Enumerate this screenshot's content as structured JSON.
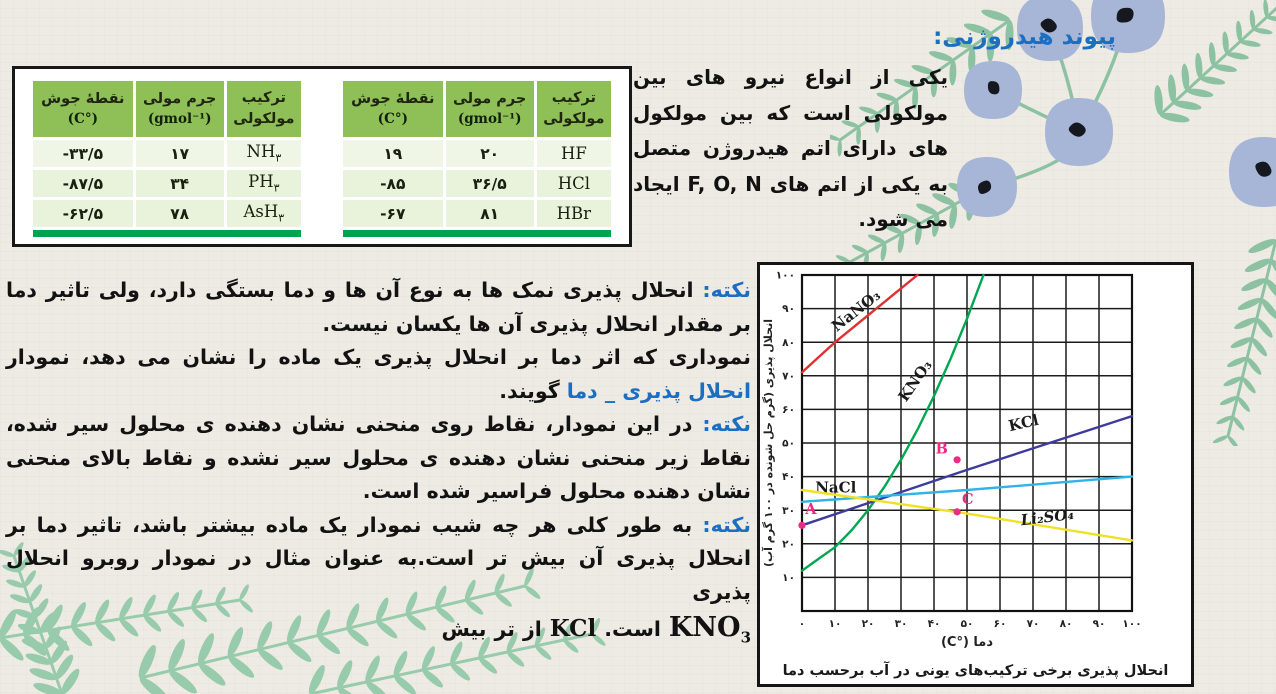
{
  "hydrogen_section": {
    "title": "پیوند هیدروژنی:",
    "body": "یکی از انواع نیرو های بین مولکولی است که بین مولکول های دارای اتم هیدروژن متصل به یکی از اتم های F, O, N ایجاد می شود."
  },
  "tables": {
    "headers": [
      {
        "lines": [
          "ترکیب",
          "مولکولی"
        ]
      },
      {
        "lines": [
          "جرم مولی",
          "(gmol⁻¹)"
        ]
      },
      {
        "lines": [
          "نقطهٔ جوش",
          "(°C)"
        ]
      }
    ],
    "left_rows": [
      [
        "NH|۳",
        "۱۷",
        "-۳۳/۵"
      ],
      [
        "PH|۳",
        "۳۴",
        "-۸۷/۵"
      ],
      [
        "AsH|۳",
        "۷۸",
        "-۶۲/۵"
      ]
    ],
    "right_rows": [
      [
        "HF",
        "۲۰",
        "۱۹"
      ],
      [
        "HCl",
        "۳۶/۵",
        "-۸۵"
      ],
      [
        "HBr",
        "۸۱",
        "-۶۷"
      ]
    ],
    "header_bg": "#8fc057",
    "row_bg": "#e9f2db",
    "underline_color": "#00a44f"
  },
  "notes": {
    "accent_color": "#1b6ec2",
    "lines": [
      {
        "just": true,
        "segs": [
          {
            "t": "نکته:",
            "blue": true
          },
          {
            "t": " انحلال پذیری نمک ها به نوع آن ها و دما بستگی دارد، ولی تاثیر دما"
          }
        ]
      },
      {
        "just": false,
        "segs": [
          {
            "t": "بر مقدار انحلال پذیری آن ها یکسان نیست."
          }
        ]
      },
      {
        "just": true,
        "segs": [
          {
            "t": "نموداری که اثر دما بر انحلال پذیری یک ماده را نشان می دهد، نمودار"
          }
        ]
      },
      {
        "just": false,
        "segs": [
          {
            "t": "انحلال پذیری _ دما",
            "blue": true
          },
          {
            "t": " گویند."
          }
        ]
      },
      {
        "just": true,
        "segs": [
          {
            "t": "نکته:",
            "blue": true
          },
          {
            "t": " در این نمودار، نقاط روی منحنی نشان دهنده ی محلول سیر شده،"
          }
        ]
      },
      {
        "just": true,
        "segs": [
          {
            "t": "نقاط زیر منحنی نشان دهنده ی محلول سیر نشده و نقاط بالای منحنی"
          }
        ]
      },
      {
        "just": false,
        "segs": [
          {
            "t": "نشان دهنده محلول فراسیر شده است."
          }
        ]
      },
      {
        "just": true,
        "segs": [
          {
            "t": "نکته:",
            "blue": true
          },
          {
            "t": " به طور کلی هر چه شیب نمودار یک ماده بیشتر باشد، تاثیر دما بر"
          }
        ]
      },
      {
        "just": true,
        "segs": [
          {
            "t": "انحلال پذیری آن بیش تر است.به عنوان مثال در نمودار روبرو انحلال پذیری"
          }
        ]
      },
      {
        "flex": true,
        "tokens": [
          {
            "t": "بیش"
          },
          {
            "t": "تر"
          },
          {
            "t": "از"
          },
          {
            "t": "KCl",
            "latin": true
          },
          {
            "t": "است."
          },
          {
            "t": "KNO",
            "latin": true,
            "big": true,
            "sub": "3"
          }
        ]
      }
    ]
  },
  "chart_data": {
    "type": "line",
    "caption": "انحلال پذیری برخی ترکیب‌های یونی در آب برحسب دما",
    "xlabel": "دما (°C)",
    "ylabel": "انحلال پذیری (گرم حل شونده در ۱۰۰ گرم آب)",
    "xlim": [
      0,
      100
    ],
    "ylim": [
      0,
      100
    ],
    "grid_step": 10,
    "grid": true,
    "x_ticks": [
      "۰",
      "۱۰",
      "۲۰",
      "۳۰",
      "۴۰",
      "۵۰",
      "۶۰",
      "۷۰",
      "۸۰",
      "۹۰",
      "۱۰۰"
    ],
    "y_ticks": [
      "۰",
      "۱۰",
      "۲۰",
      "۳۰",
      "۴۰",
      "۵۰",
      "۶۰",
      "۷۰",
      "۸۰",
      "۹۰",
      "۱۰۰"
    ],
    "series": [
      {
        "name": "NaNO₃",
        "color": "#e03030",
        "points": [
          [
            0,
            71
          ],
          [
            5,
            75.5
          ],
          [
            10,
            80
          ],
          [
            15,
            84
          ],
          [
            20,
            88
          ],
          [
            25,
            92
          ],
          [
            30,
            96
          ],
          [
            35,
            100
          ]
        ],
        "label_pos": [
          10.5,
          83
        ],
        "label_angle": -38
      },
      {
        "name": "KNO₃",
        "color": "#00a651",
        "points": [
          [
            0,
            12
          ],
          [
            5,
            15.5
          ],
          [
            10,
            19
          ],
          [
            15,
            24
          ],
          [
            20,
            30
          ],
          [
            25,
            37
          ],
          [
            30,
            45
          ],
          [
            35,
            54
          ],
          [
            40,
            64
          ],
          [
            45,
            75
          ],
          [
            50,
            87
          ],
          [
            55,
            100
          ]
        ],
        "label_pos": [
          31.5,
          62
        ],
        "label_angle": -55
      },
      {
        "name": "KCl",
        "color": "#3c3c9c",
        "points": [
          [
            0,
            25.5
          ],
          [
            50,
            42
          ],
          [
            100,
            58
          ]
        ],
        "label_pos": [
          63,
          53.5
        ],
        "label_angle": -13
      },
      {
        "name": "NaCl",
        "color": "#2fb3e8",
        "points": [
          [
            0,
            32.5
          ],
          [
            50,
            36
          ],
          [
            100,
            40
          ]
        ],
        "label_pos": [
          4,
          35.2
        ],
        "label_angle": 0
      },
      {
        "name": "Li₂SO₄",
        "color": "#f0e222",
        "italic": true,
        "points": [
          [
            0,
            36
          ],
          [
            50,
            29
          ],
          [
            100,
            21
          ]
        ],
        "label_pos": [
          66.5,
          25.5
        ],
        "label_angle": -7
      }
    ],
    "marked_points": [
      {
        "label": "A",
        "xy": [
          0,
          25.5
        ],
        "label_offset": [
          1,
          4.5
        ]
      },
      {
        "label": "B",
        "xy": [
          47,
          45
        ],
        "label_offset": [
          -6.5,
          3
        ]
      },
      {
        "label": "C",
        "xy": [
          47,
          29.5
        ],
        "label_offset": [
          1.5,
          3.5
        ]
      }
    ],
    "point_color": "#ee2a86",
    "legend_position": "on-curve-labels"
  },
  "decor": {
    "berry_color": "#a7b6d6",
    "berry_seed_color": "#15191f",
    "fern_color_top": "#8cc2a2",
    "fern_color_bottom": "#97cbab"
  }
}
